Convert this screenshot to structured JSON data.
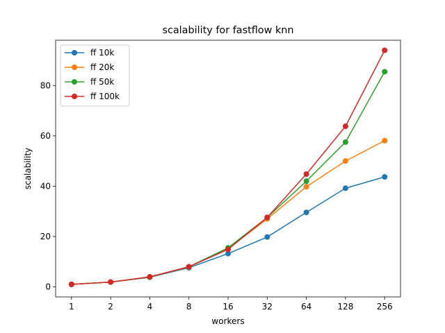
{
  "chart_data": {
    "type": "line",
    "title": "scalability for fastflow knn",
    "xlabel": "workers",
    "ylabel": "scalability",
    "x": [
      "1",
      "2",
      "4",
      "8",
      "16",
      "32",
      "64",
      "128",
      "256"
    ],
    "ylim": [
      -4,
      98
    ],
    "yticks": [
      0,
      20,
      40,
      60,
      80
    ],
    "grid": false,
    "legend_position": "top-left",
    "series": [
      {
        "name": "ff 10k",
        "color": "#1f77b4",
        "values": [
          1.0,
          1.9,
          3.8,
          7.6,
          13.2,
          19.8,
          29.6,
          39.2,
          43.7
        ]
      },
      {
        "name": "ff 20k",
        "color": "#ff7f0e",
        "values": [
          1.0,
          1.9,
          3.9,
          7.9,
          15.2,
          27.0,
          39.8,
          50.0,
          58.1
        ]
      },
      {
        "name": "ff 50k",
        "color": "#2ca02c",
        "values": [
          1.0,
          1.9,
          3.9,
          8.0,
          15.5,
          27.6,
          42.0,
          57.5,
          85.5
        ]
      },
      {
        "name": "ff 100k",
        "color": "#d62728",
        "values": [
          1.0,
          1.9,
          4.0,
          8.0,
          14.9,
          27.6,
          44.8,
          63.8,
          94.0
        ]
      }
    ]
  }
}
